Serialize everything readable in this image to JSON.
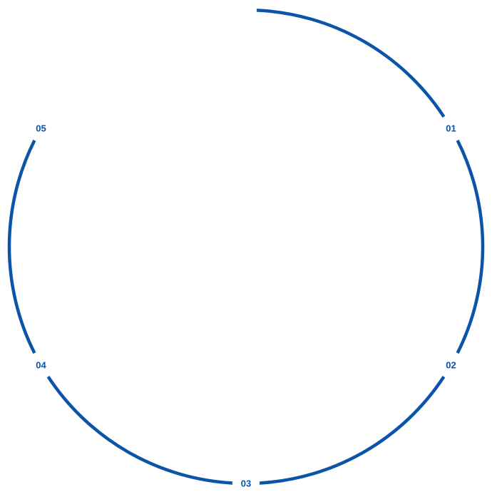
{
  "diagram": {
    "type": "segmented-ring",
    "color": "#0b54a8",
    "labels": [
      "01",
      "02",
      "03",
      "04",
      "05"
    ]
  }
}
